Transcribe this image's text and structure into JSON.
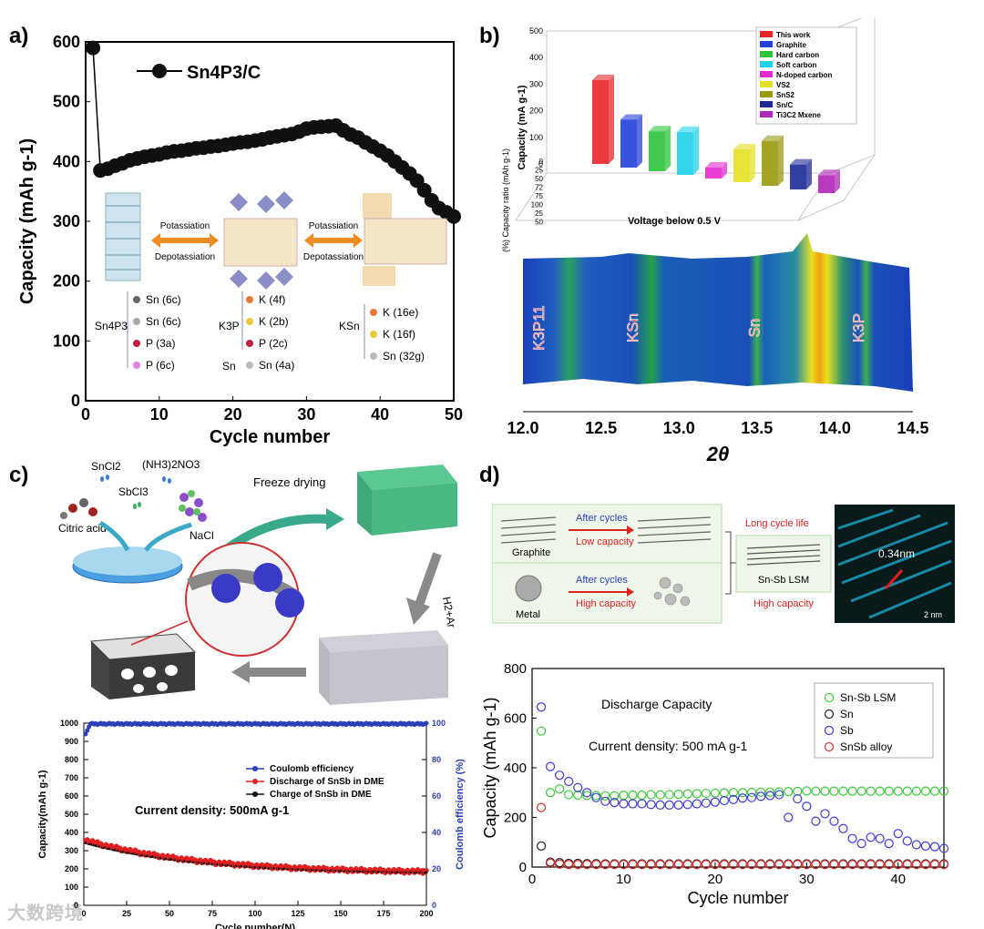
{
  "panels": {
    "a": "a)",
    "b": "b)",
    "c": "c)",
    "d": "d)"
  },
  "watermark": "大数跨境",
  "colors": {
    "ball": "#111111",
    "orange_arrow": "#f08a24",
    "green_arrow": "#3aa98b",
    "gray_arrow": "#8a8a8a",
    "red": "#e02020",
    "blue": "#2b3fb8",
    "green_mark": "#4ad04a"
  },
  "chart_data": [
    {
      "id": "a",
      "type": "line",
      "title": "",
      "legend": "Sn4P3/C",
      "xlabel": "Cycle number",
      "ylabel": "Capacity (mAh g-1)",
      "xlim": [
        0,
        50
      ],
      "ylim": [
        0,
        600
      ],
      "xticks": [
        0,
        10,
        20,
        30,
        40,
        50
      ],
      "yticks": [
        0,
        100,
        200,
        300,
        400,
        500,
        600
      ],
      "x": [
        1,
        2,
        3,
        4,
        5,
        6,
        7,
        8,
        9,
        10,
        11,
        12,
        13,
        14,
        15,
        16,
        17,
        18,
        19,
        20,
        21,
        22,
        23,
        24,
        25,
        26,
        27,
        28,
        29,
        30,
        31,
        32,
        33,
        34,
        35,
        36,
        37,
        38,
        39,
        40,
        41,
        42,
        43,
        44,
        45,
        46,
        47,
        48,
        49,
        50
      ],
      "y": [
        590,
        385,
        388,
        393,
        397,
        402,
        405,
        408,
        410,
        412,
        415,
        417,
        418,
        420,
        422,
        423,
        425,
        426,
        428,
        430,
        432,
        433,
        435,
        437,
        440,
        442,
        444,
        446,
        450,
        455,
        457,
        458,
        459,
        460,
        452,
        445,
        440,
        432,
        425,
        418,
        410,
        400,
        390,
        380,
        368,
        352,
        335,
        322,
        315,
        308
      ],
      "insets": {
        "potassiation": "Potassiation",
        "depotassiation": "Depotassiation",
        "sn4p3_group": "Sn4P3",
        "sn4p3_items": [
          "Sn (6c)",
          "Sn (6c)",
          "P (3a)",
          "P (6c)"
        ],
        "k3p_group": "K3P",
        "k3p_items": [
          "K (4f)",
          "K (2b)",
          "P (2c)"
        ],
        "sn_group": "Sn",
        "sn_item": "Sn (4a)",
        "ksn_group": "KSn",
        "ksn_items": [
          "K (16e)",
          "K (16f)",
          "Sn (32g)"
        ]
      }
    },
    {
      "id": "b_bar",
      "type": "bar",
      "ylabel": "Capacity (mA g-1)",
      "yticks": [
        0,
        100,
        200,
        300,
        400,
        500
      ],
      "ylim": [
        0,
        500
      ],
      "back_label": "(%) Capacity ratio (mAh g-1)",
      "back_ticks": [
        "0",
        "25",
        "50",
        "72",
        "75",
        "100",
        "25",
        "50"
      ],
      "xlabel": "Voltage below 0.5 V",
      "categories": [
        "This work",
        "Graphite",
        "Hard carbon",
        "Soft carbon",
        "N-doped carbon",
        "VS2",
        "SnS2",
        "Sn/C",
        "Ti3C2 Mxene"
      ],
      "values": [
        420,
        240,
        200,
        215,
        55,
        165,
        225,
        125,
        90
      ],
      "colors": [
        "#e8252a",
        "#2540d8",
        "#2cc43a",
        "#1ed0e8",
        "#e42ad0",
        "#e4e024",
        "#9a9a10",
        "#1c2a98",
        "#b025b8"
      ]
    },
    {
      "id": "b_xrd",
      "type": "heatmap",
      "xlabel": "2θ",
      "xlim": [
        12.0,
        14.5
      ],
      "xticks": [
        "12.0",
        "12.5",
        "13.0",
        "13.5",
        "14.0",
        "14.5"
      ],
      "peaks": [
        {
          "label": "K3P11",
          "pos": 12.1
        },
        {
          "label": "KSn",
          "pos": 12.7
        },
        {
          "label": "Sn",
          "pos": 13.48
        },
        {
          "label": "K3P",
          "pos": 14.15
        }
      ]
    },
    {
      "id": "c",
      "type": "scatter",
      "title": "",
      "annotation": "Current density: 500mA g-1",
      "xlabel": "Cycle number(N)",
      "ylabel": "Capacity(mAh g-1)",
      "y2label": "Coulomb efficiency (%)",
      "xlim": [
        0,
        200
      ],
      "ylim": [
        0,
        1000
      ],
      "y2lim": [
        0,
        100
      ],
      "xticks": [
        0,
        25,
        50,
        75,
        100,
        125,
        150,
        175,
        200
      ],
      "yticks": [
        0,
        100,
        200,
        300,
        400,
        500,
        600,
        700,
        800,
        900,
        1000
      ],
      "y2ticks": [
        0,
        20,
        40,
        60,
        80,
        100
      ],
      "series": [
        {
          "name": "Coulomb efficiency",
          "color": "#2b3fb8",
          "start": 92,
          "end": 100,
          "level": 100
        },
        {
          "name": "Discharge of SnSb in DME",
          "color": "#e02020",
          "start": 360,
          "end": 185
        },
        {
          "name": "Charge of SnSb in DME",
          "color": "#111111",
          "start": 345,
          "end": 180
        }
      ],
      "schematic": {
        "sncl2": "SnCl2",
        "sbcl3": "SbCl3",
        "nh3no3": "(NH3)2NO3",
        "citric": "Citric acid",
        "nacl": "NaCl",
        "freeze": "Freeze drying",
        "h2ar": "H2+Ar"
      }
    },
    {
      "id": "d",
      "type": "scatter",
      "title": "Discharge Capacity",
      "annotation": "Current density: 500 mA g-1",
      "xlabel": "Cycle number",
      "ylabel": "Capacity (mAh g-1)",
      "xlim": [
        0,
        45
      ],
      "ylim": [
        0,
        800
      ],
      "xticks": [
        0,
        10,
        20,
        30,
        40
      ],
      "yticks": [
        0,
        200,
        400,
        600,
        800
      ],
      "x": [
        1,
        2,
        3,
        4,
        5,
        6,
        7,
        8,
        9,
        10,
        11,
        12,
        13,
        14,
        15,
        16,
        17,
        18,
        19,
        20,
        21,
        22,
        23,
        24,
        25,
        26,
        27,
        28,
        29,
        30,
        31,
        32,
        33,
        34,
        35,
        36,
        37,
        38,
        39,
        40,
        41,
        42,
        43,
        44,
        45
      ],
      "series": [
        {
          "name": "Sn-Sb LSM",
          "color": "#3cc83c",
          "values": [
            548,
            300,
            315,
            292,
            290,
            288,
            288,
            287,
            287,
            289,
            290,
            290,
            292,
            291,
            292,
            293,
            295,
            296,
            297,
            298,
            299,
            300,
            300,
            301,
            302,
            302,
            303,
            304,
            305,
            307,
            306,
            306,
            306,
            306,
            306,
            306,
            306,
            306,
            306,
            306,
            306,
            306,
            306,
            306,
            306
          ]
        },
        {
          "name": "Sn",
          "color": "#222222",
          "values": [
            85,
            20,
            18,
            15,
            15,
            14,
            14,
            13,
            13,
            13,
            13,
            13,
            13,
            13,
            13,
            13,
            13,
            13,
            13,
            13,
            13,
            13,
            13,
            13,
            13,
            13,
            13,
            13,
            13,
            13,
            13,
            13,
            13,
            13,
            13,
            13,
            13,
            13,
            13,
            13,
            13,
            13,
            13,
            13,
            13
          ]
        },
        {
          "name": "Sb",
          "color": "#3a3ae0",
          "values": [
            645,
            405,
            370,
            345,
            320,
            300,
            280,
            265,
            260,
            255,
            255,
            255,
            252,
            250,
            250,
            250,
            252,
            255,
            258,
            262,
            268,
            272,
            278,
            280,
            285,
            288,
            292,
            200,
            275,
            245,
            185,
            215,
            185,
            155,
            115,
            95,
            120,
            115,
            95,
            135,
            105,
            90,
            85,
            82,
            75
          ]
        },
        {
          "name": "SnSb alloy",
          "color": "#e03030",
          "values": [
            240,
            15,
            12,
            10,
            10,
            10,
            10,
            10,
            10,
            10,
            10,
            10,
            10,
            10,
            10,
            10,
            10,
            10,
            10,
            10,
            10,
            10,
            10,
            10,
            10,
            10,
            10,
            10,
            10,
            10,
            10,
            10,
            10,
            10,
            10,
            10,
            10,
            10,
            10,
            10,
            10,
            10,
            10,
            10,
            10
          ]
        }
      ],
      "schematic": {
        "graphite": "Graphite",
        "metal": "Metal",
        "after_cycles_top": "After cycles",
        "after_cycles_bottom": "After cycles",
        "low_capacity": "Low capacity",
        "high_capacity": "High capacity",
        "long_life": "Long cycle life",
        "lsm": "Sn-Sb LSM",
        "lsm_high": "High capacity",
        "spacing": "0.34nm",
        "scale": "2 nm"
      }
    }
  ]
}
